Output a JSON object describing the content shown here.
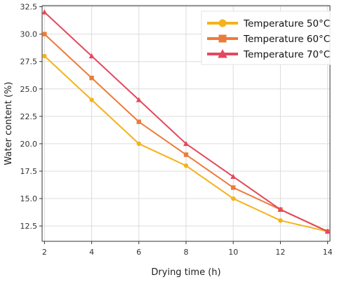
{
  "chart_data": {
    "type": "line",
    "xlabel": "Drying time (h)",
    "ylabel": "Water content (%)",
    "x": [
      2,
      4,
      6,
      8,
      10,
      12,
      14
    ],
    "xlim": [
      1.9,
      14.1
    ],
    "ylim": [
      11.1,
      32.6
    ],
    "xticks": [
      2,
      4,
      6,
      8,
      10,
      12,
      14
    ],
    "yticks": [
      "12.5",
      "15.0",
      "17.5",
      "20.0",
      "22.5",
      "25.0",
      "27.5",
      "30.0",
      "32.5"
    ],
    "grid": true,
    "legend_position": "top-right",
    "series": [
      {
        "name": "Temperature 50°C",
        "marker": "circle",
        "color": "#f5b21a",
        "values": [
          28,
          24,
          20,
          18,
          15,
          13,
          12
        ]
      },
      {
        "name": "Temperature 60°C",
        "marker": "square",
        "color": "#ec7b3a",
        "values": [
          30,
          26,
          22,
          19,
          16,
          14,
          12
        ]
      },
      {
        "name": "Temperature 70°C",
        "marker": "triangle",
        "color": "#e5485c",
        "values": [
          32,
          28,
          24,
          20,
          17,
          14,
          12
        ]
      }
    ]
  }
}
